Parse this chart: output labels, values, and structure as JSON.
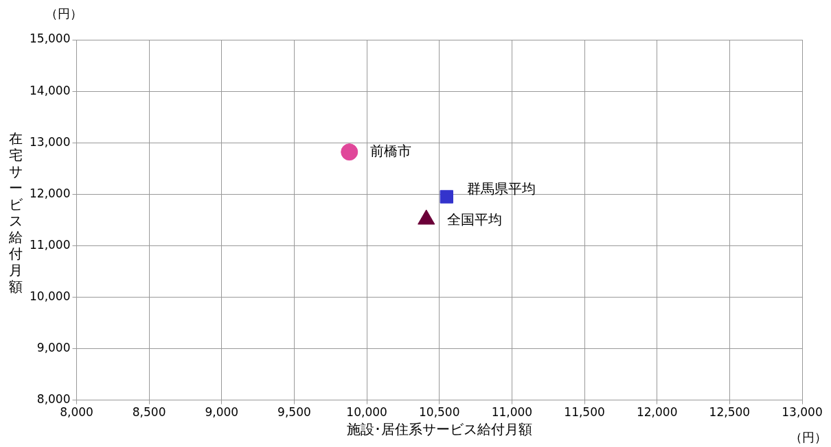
{
  "chart_data": {
    "type": "scatter",
    "xlabel": "施設･居住系サービス給付月額",
    "ylabel": "在宅サービス給付月額",
    "annotations": [
      "（円）",
      "（円）"
    ],
    "xlim": [
      8000,
      13000
    ],
    "xticks": [
      {
        "value": 8000,
        "label": "8,000"
      },
      {
        "value": 8500,
        "label": "8,500"
      },
      {
        "value": 9000,
        "label": "9,000"
      },
      {
        "value": 9500,
        "label": "9,500"
      },
      {
        "value": 10000,
        "label": "10,000"
      },
      {
        "value": 10500,
        "label": "10,500"
      },
      {
        "value": 11000,
        "label": "11,000"
      },
      {
        "value": 11500,
        "label": "11,500"
      },
      {
        "value": 12000,
        "label": "12,000"
      },
      {
        "value": 12500,
        "label": "12,500"
      },
      {
        "value": 13000,
        "label": "13,000"
      }
    ],
    "ylim": [
      8000,
      15000
    ],
    "yticks": [
      {
        "value": 8000,
        "label": "8,000"
      },
      {
        "value": 9000,
        "label": "9,000"
      },
      {
        "value": 10000,
        "label": "10,000"
      },
      {
        "value": 11000,
        "label": "11,000"
      },
      {
        "value": 12000,
        "label": "12,000"
      },
      {
        "value": 13000,
        "label": "13,000"
      },
      {
        "value": 14000,
        "label": "14,000"
      },
      {
        "value": 15000,
        "label": "15,000"
      }
    ],
    "grid": true,
    "legend": false,
    "series": [
      {
        "name": "前橋市",
        "color": "#e0479a",
        "marker": "circle",
        "x": [
          9880
        ],
        "values": [
          12820
        ]
      },
      {
        "name": "群馬県平均",
        "color": "#3333cc",
        "marker": "square",
        "x": [
          10550
        ],
        "values": [
          11950
        ]
      },
      {
        "name": "全国平均",
        "color": "#6b0038",
        "marker": "triangle",
        "x": [
          10410
        ],
        "values": [
          11510
        ]
      }
    ]
  }
}
